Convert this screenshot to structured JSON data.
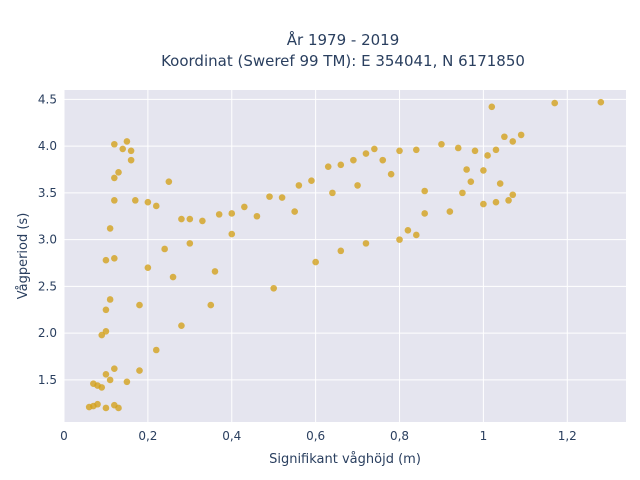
{
  "chart_data": {
    "type": "scatter",
    "title": "År 1979 - 2019",
    "subtitle": "Koordinat (Sweref 99 TM): E 354041, N 6171850",
    "xlabel": "Signifikant våghöjd (m)",
    "ylabel": "Vågperiod (s)",
    "xlim": [
      0,
      1.34
    ],
    "ylim": [
      1.05,
      4.6
    ],
    "x_ticks": [
      0,
      0.2,
      0.4,
      0.6,
      0.8,
      1,
      1.2
    ],
    "x_tick_labels": [
      "0",
      "0,2",
      "0,4",
      "0,6",
      "0,8",
      "1",
      "1,2"
    ],
    "y_ticks": [
      1.5,
      2.0,
      2.5,
      3.0,
      3.5,
      4.0,
      4.5
    ],
    "y_tick_labels": [
      "1.5",
      "2.0",
      "2.5",
      "3.0",
      "3.5",
      "4.0",
      "4.5"
    ],
    "grid": true,
    "legend": "none",
    "colors": {
      "marker": "#d4a017",
      "plot_bg": "#e5e5ef",
      "grid": "#ffffff",
      "text": "#2a3f5f"
    },
    "series": [
      {
        "points": [
          [
            0.06,
            1.21
          ],
          [
            0.07,
            1.22
          ],
          [
            0.08,
            1.24
          ],
          [
            0.1,
            1.2
          ],
          [
            0.12,
            1.23
          ],
          [
            0.13,
            1.2
          ],
          [
            0.07,
            1.46
          ],
          [
            0.08,
            1.44
          ],
          [
            0.1,
            1.56
          ],
          [
            0.09,
            1.42
          ],
          [
            0.11,
            1.5
          ],
          [
            0.12,
            1.62
          ],
          [
            0.09,
            1.98
          ],
          [
            0.1,
            2.02
          ],
          [
            0.1,
            2.25
          ],
          [
            0.11,
            2.36
          ],
          [
            0.1,
            2.78
          ],
          [
            0.12,
            2.8
          ],
          [
            0.11,
            3.12
          ],
          [
            0.12,
            3.42
          ],
          [
            0.12,
            3.66
          ],
          [
            0.13,
            3.72
          ],
          [
            0.12,
            4.02
          ],
          [
            0.14,
            3.97
          ],
          [
            0.16,
            3.95
          ],
          [
            0.15,
            4.05
          ],
          [
            0.16,
            3.85
          ],
          [
            0.17,
            3.42
          ],
          [
            0.2,
            3.4
          ],
          [
            0.22,
            3.36
          ],
          [
            0.25,
            3.62
          ],
          [
            0.28,
            3.22
          ],
          [
            0.3,
            3.22
          ],
          [
            0.33,
            3.2
          ],
          [
            0.37,
            3.27
          ],
          [
            0.4,
            3.28
          ],
          [
            0.43,
            3.35
          ],
          [
            0.49,
            3.46
          ],
          [
            0.52,
            3.45
          ],
          [
            0.56,
            3.58
          ],
          [
            0.59,
            3.63
          ],
          [
            0.63,
            3.78
          ],
          [
            0.66,
            3.8
          ],
          [
            0.69,
            3.85
          ],
          [
            0.72,
            3.92
          ],
          [
            0.74,
            3.97
          ],
          [
            0.76,
            3.85
          ],
          [
            0.8,
            3.95
          ],
          [
            0.84,
            3.96
          ],
          [
            0.9,
            4.02
          ],
          [
            0.94,
            3.98
          ],
          [
            0.98,
            3.95
          ],
          [
            1.01,
            3.9
          ],
          [
            1.03,
            3.96
          ],
          [
            1.05,
            4.1
          ],
          [
            1.07,
            4.05
          ],
          [
            1.09,
            4.12
          ],
          [
            1.02,
            4.42
          ],
          [
            1.17,
            4.46
          ],
          [
            1.28,
            4.47
          ],
          [
            0.92,
            3.3
          ],
          [
            0.95,
            3.5
          ],
          [
            0.97,
            3.62
          ],
          [
            1.0,
            3.38
          ],
          [
            1.03,
            3.4
          ],
          [
            1.06,
            3.42
          ],
          [
            0.96,
            3.75
          ],
          [
            1.0,
            3.74
          ],
          [
            1.04,
            3.6
          ],
          [
            1.07,
            3.48
          ],
          [
            0.86,
            3.52
          ],
          [
            0.86,
            3.28
          ],
          [
            0.82,
            3.1
          ],
          [
            0.84,
            3.05
          ],
          [
            0.8,
            3.0
          ],
          [
            0.72,
            2.96
          ],
          [
            0.66,
            2.88
          ],
          [
            0.6,
            2.76
          ],
          [
            0.5,
            2.48
          ],
          [
            0.35,
            2.3
          ],
          [
            0.28,
            2.08
          ],
          [
            0.22,
            1.82
          ],
          [
            0.18,
            1.6
          ],
          [
            0.15,
            1.48
          ],
          [
            0.2,
            2.7
          ],
          [
            0.24,
            2.9
          ],
          [
            0.3,
            2.96
          ],
          [
            0.4,
            3.06
          ],
          [
            0.46,
            3.25
          ],
          [
            0.55,
            3.3
          ],
          [
            0.7,
            3.58
          ],
          [
            0.78,
            3.7
          ],
          [
            0.64,
            3.5
          ],
          [
            0.36,
            2.66
          ],
          [
            0.26,
            2.6
          ],
          [
            0.18,
            2.3
          ]
        ]
      }
    ]
  }
}
